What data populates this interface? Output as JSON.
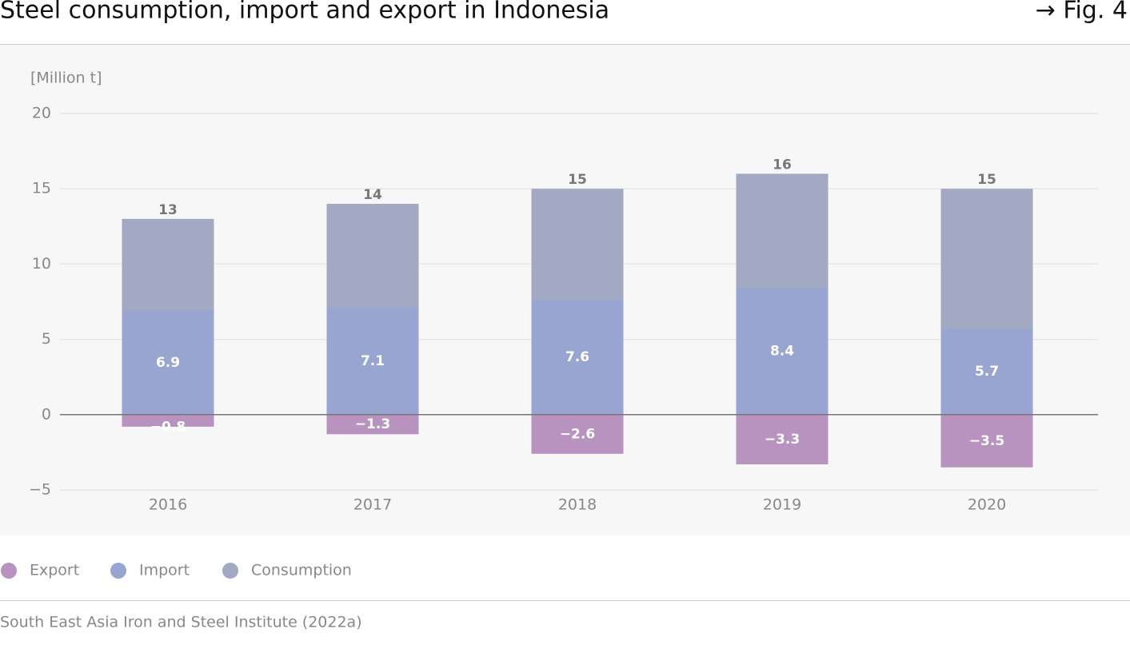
{
  "chart_data": {
    "type": "bar",
    "title": "Steel consumption, import and export in Indonesia",
    "figure_label": "→ Fig. 4",
    "y_axis_label": "[Million t]",
    "source": "South East Asia Iron and Steel Institute (2022a)",
    "categories": [
      "2016",
      "2017",
      "2018",
      "2019",
      "2020"
    ],
    "series": [
      {
        "name": "Export",
        "color": "#b893c0",
        "values": [
          -0.8,
          -1.3,
          -2.6,
          -3.3,
          -3.5
        ],
        "value_labels": [
          "−0.8",
          "−1.3",
          "−2.6",
          "−3.3",
          "−3.5"
        ]
      },
      {
        "name": "Import",
        "color": "#97a5d0",
        "values": [
          6.9,
          7.1,
          7.6,
          8.4,
          5.7
        ]
      },
      {
        "name": "Consumption",
        "color": "#a3a9c2",
        "values": [
          13,
          14,
          15,
          16,
          15
        ]
      }
    ],
    "ylim": [
      -5,
      20
    ],
    "yticks": [
      {
        "value": -5,
        "label": "−5"
      },
      0,
      5,
      10,
      15,
      20
    ],
    "grid": true,
    "legend": "bottom-left"
  }
}
